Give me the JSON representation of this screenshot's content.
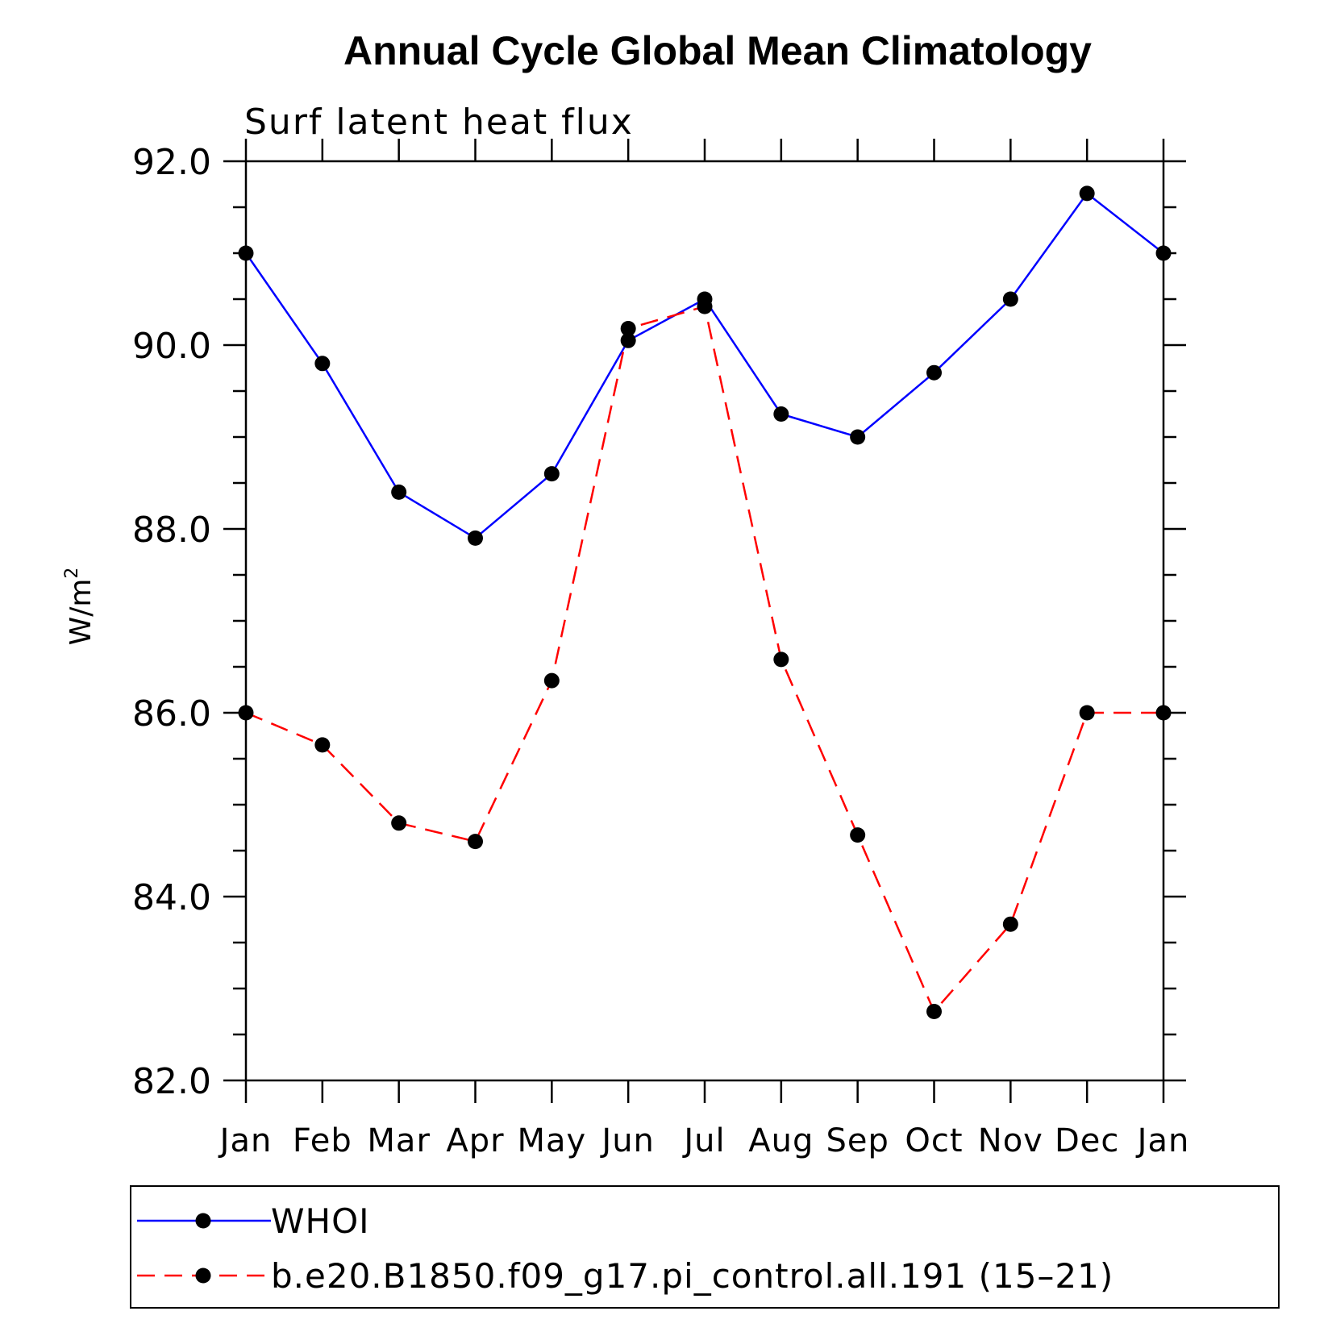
{
  "chart_data": {
    "type": "line",
    "title": "Annual Cycle Global Mean Climatology",
    "subtitle": "Surf latent heat flux",
    "xlabel": "",
    "ylabel": "W/m",
    "ylabel_sup": "2",
    "categories": [
      "Jan",
      "Feb",
      "Mar",
      "Apr",
      "May",
      "Jun",
      "Jul",
      "Aug",
      "Sep",
      "Oct",
      "Nov",
      "Dec",
      "Jan"
    ],
    "ylim": [
      82.0,
      92.0
    ],
    "yticks": [
      "82.0",
      "84.0",
      "86.0",
      "88.0",
      "90.0",
      "92.0"
    ],
    "legend_position": "bottom",
    "series": [
      {
        "name": "WHOI",
        "color": "#0000ff",
        "dash": "solid",
        "values": [
          91.0,
          89.8,
          88.4,
          87.9,
          88.6,
          90.05,
          90.5,
          89.25,
          89.0,
          89.7,
          90.5,
          91.65,
          91.0
        ]
      },
      {
        "name": "b.e20.B1850.f09_g17.pi_control.all.191 (15–21)",
        "color": "#ff0000",
        "dash": "dashed",
        "values": [
          86.0,
          85.65,
          84.8,
          84.6,
          86.35,
          90.18,
          90.42,
          86.58,
          84.67,
          82.75,
          83.7,
          86.0,
          86.0
        ]
      }
    ]
  }
}
